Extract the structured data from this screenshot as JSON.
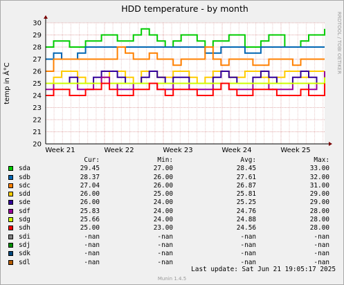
{
  "chart_data": {
    "type": "line",
    "title": "HDD temperature - by month",
    "ylabel": "temp in Â°C",
    "side_label": "RRDTOOL / TOBI OETIKER",
    "ylim": [
      20,
      30
    ],
    "yticks": [
      20,
      21,
      22,
      23,
      24,
      25,
      26,
      27,
      28,
      29,
      30
    ],
    "xticks": [
      "Week 21",
      "Week 22",
      "Week 23",
      "Week 24",
      "Week 25"
    ],
    "grid": true,
    "series": [
      {
        "name": "sda",
        "color": "#00cc00",
        "values": [
          28.0,
          28.5,
          28.5,
          28.0,
          28.0,
          28.5,
          28.5,
          29.0,
          29.0,
          28.5,
          28.5,
          29.0,
          29.5,
          29.0,
          28.5,
          28.0,
          28.5,
          29.0,
          29.0,
          28.5,
          28.0,
          28.5,
          28.5,
          29.0,
          29.0,
          28.0,
          28.0,
          28.5,
          29.0,
          29.0,
          28.0,
          28.0,
          28.5,
          29.0,
          29.0,
          29.5
        ]
      },
      {
        "name": "sdb",
        "color": "#0066b3",
        "values": [
          27.0,
          27.5,
          27.0,
          27.0,
          27.5,
          28.0,
          28.0,
          28.0,
          28.0,
          28.0,
          28.0,
          28.0,
          28.0,
          28.0,
          28.0,
          28.0,
          28.0,
          28.0,
          28.0,
          28.0,
          27.5,
          27.5,
          28.0,
          28.0,
          28.0,
          27.5,
          27.5,
          28.0,
          28.0,
          28.0,
          28.0,
          28.0,
          28.0,
          28.0,
          28.0,
          28.0
        ]
      },
      {
        "name": "sdc",
        "color": "#ff8000",
        "values": [
          26.0,
          27.0,
          27.0,
          27.0,
          27.0,
          27.0,
          27.0,
          27.0,
          27.0,
          28.0,
          27.5,
          27.0,
          27.0,
          27.5,
          27.0,
          27.0,
          26.5,
          27.0,
          27.0,
          27.0,
          28.0,
          27.0,
          26.5,
          27.0,
          27.0,
          27.0,
          26.5,
          26.5,
          27.0,
          27.0,
          27.0,
          26.5,
          27.0,
          27.0,
          27.0,
          27.0
        ]
      },
      {
        "name": "sdd",
        "color": "#ffcc00",
        "values": [
          25.0,
          25.5,
          26.0,
          26.0,
          25.5,
          25.0,
          25.0,
          25.5,
          26.0,
          26.0,
          25.5,
          25.0,
          26.0,
          26.0,
          25.5,
          25.5,
          26.0,
          26.0,
          25.5,
          25.0,
          25.5,
          26.0,
          26.0,
          25.5,
          25.5,
          26.0,
          26.0,
          25.5,
          25.0,
          25.5,
          26.0,
          26.0,
          25.5,
          26.0,
          26.0,
          26.0
        ]
      },
      {
        "name": "sde",
        "color": "#330099",
        "values": [
          25.0,
          25.0,
          25.0,
          25.5,
          25.0,
          25.0,
          25.5,
          26.0,
          26.0,
          25.5,
          25.0,
          25.0,
          25.5,
          26.0,
          25.5,
          25.0,
          25.5,
          25.5,
          25.0,
          25.0,
          25.0,
          25.5,
          26.0,
          25.5,
          25.0,
          25.0,
          25.5,
          26.0,
          25.5,
          25.0,
          25.0,
          25.5,
          26.0,
          25.5,
          25.0,
          26.0
        ]
      },
      {
        "name": "sdf",
        "color": "#990099",
        "values": [
          24.5,
          25.0,
          25.0,
          25.0,
          24.5,
          24.5,
          25.0,
          25.5,
          25.0,
          24.5,
          24.5,
          25.0,
          25.0,
          25.0,
          24.5,
          24.5,
          25.0,
          25.0,
          24.5,
          24.5,
          24.5,
          25.0,
          25.0,
          24.5,
          24.5,
          24.5,
          25.0,
          25.0,
          24.5,
          24.5,
          24.5,
          25.0,
          25.0,
          24.5,
          25.0,
          26.0
        ]
      },
      {
        "name": "sdg",
        "color": "#ccff00",
        "values": [
          25.0,
          25.0,
          25.0,
          25.0,
          25.0,
          25.0,
          25.0,
          25.0,
          25.0,
          25.0,
          25.0,
          25.0,
          25.0,
          25.0,
          25.0,
          25.0,
          25.0,
          25.0,
          25.0,
          25.0,
          25.0,
          25.0,
          25.0,
          25.0,
          25.0,
          25.0,
          25.0,
          25.0,
          25.0,
          25.0,
          25.0,
          25.0,
          25.0,
          25.0,
          25.0,
          25.5
        ]
      },
      {
        "name": "sdh",
        "color": "#ff0000",
        "values": [
          24.0,
          24.5,
          24.5,
          24.0,
          24.0,
          24.5,
          24.5,
          25.0,
          24.5,
          24.0,
          24.0,
          24.5,
          24.5,
          25.0,
          24.5,
          24.0,
          24.5,
          24.5,
          24.5,
          24.0,
          24.0,
          24.5,
          25.0,
          24.5,
          24.0,
          24.0,
          24.5,
          24.5,
          24.5,
          24.0,
          24.0,
          24.0,
          24.5,
          24.0,
          24.0,
          25.0
        ]
      }
    ]
  },
  "legend": {
    "headers": {
      "cur": "Cur:",
      "min": "Min:",
      "avg": "Avg:",
      "max": "Max:"
    },
    "rows": [
      {
        "name": "sda",
        "color": "#00cc00",
        "cur": "29.45",
        "min": "27.00",
        "avg": "28.45",
        "max": "33.00"
      },
      {
        "name": "sdb",
        "color": "#0066b3",
        "cur": "28.37",
        "min": "26.00",
        "avg": "27.61",
        "max": "32.00"
      },
      {
        "name": "sdc",
        "color": "#ff8000",
        "cur": "27.04",
        "min": "26.00",
        "avg": "26.87",
        "max": "31.00"
      },
      {
        "name": "sdd",
        "color": "#ffcc00",
        "cur": "26.00",
        "min": "25.00",
        "avg": "25.81",
        "max": "29.00"
      },
      {
        "name": "sde",
        "color": "#330099",
        "cur": "26.00",
        "min": "24.00",
        "avg": "25.25",
        "max": "29.00"
      },
      {
        "name": "sdf",
        "color": "#990099",
        "cur": "25.83",
        "min": "24.00",
        "avg": "24.76",
        "max": "28.00"
      },
      {
        "name": "sdg",
        "color": "#ccff00",
        "cur": "25.66",
        "min": "24.00",
        "avg": "24.88",
        "max": "28.00"
      },
      {
        "name": "sdh",
        "color": "#ff0000",
        "cur": "25.00",
        "min": "23.00",
        "avg": "24.56",
        "max": "28.00"
      },
      {
        "name": "sdi",
        "color": "#808080",
        "cur": "-nan",
        "min": "-nan",
        "avg": "-nan",
        "max": "-nan"
      },
      {
        "name": "sdj",
        "color": "#008f00",
        "cur": "-nan",
        "min": "-nan",
        "avg": "-nan",
        "max": "-nan"
      },
      {
        "name": "sdk",
        "color": "#00487d",
        "cur": "-nan",
        "min": "-nan",
        "avg": "-nan",
        "max": "-nan"
      },
      {
        "name": "sdl",
        "color": "#b35a00",
        "cur": "-nan",
        "min": "-nan",
        "avg": "-nan",
        "max": "-nan"
      }
    ]
  },
  "last_update": "Last update:  Sat Jun 21 19:05:17 2025",
  "munin_version": "Munin 1.4.5"
}
